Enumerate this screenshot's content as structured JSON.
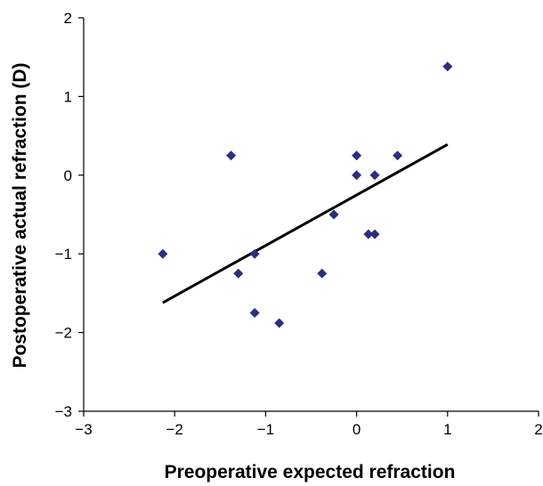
{
  "chart_data": {
    "type": "scatter",
    "title": "",
    "xlabel": "Preoperative expected refraction",
    "ylabel": "Postoperative actual refraction (D)",
    "xlim": [
      -3,
      2
    ],
    "ylim": [
      -3,
      2
    ],
    "x_ticks": [
      -3,
      -2,
      -1,
      0,
      1,
      2
    ],
    "y_ticks": [
      -3,
      -2,
      -1,
      0,
      1,
      2
    ],
    "x_tick_labels": [
      "−3",
      "−2",
      "−1",
      "0",
      "1",
      "2"
    ],
    "y_tick_labels": [
      "−3",
      "−2",
      "−1",
      "0",
      "1",
      "2"
    ],
    "grid": false,
    "legend": "none",
    "marker": "diamond",
    "marker_color": "#2e2e7e",
    "line_color": "#000000",
    "series": [
      {
        "points": [
          {
            "x": -2.13,
            "y": -1.0
          },
          {
            "x": -1.38,
            "y": 0.25
          },
          {
            "x": -1.3,
            "y": -1.25
          },
          {
            "x": -1.12,
            "y": -1.0
          },
          {
            "x": -1.12,
            "y": -1.75
          },
          {
            "x": -0.85,
            "y": -1.88
          },
          {
            "x": -0.38,
            "y": -1.25
          },
          {
            "x": -0.25,
            "y": -0.5
          },
          {
            "x": 0.0,
            "y": 0.0
          },
          {
            "x": 0.0,
            "y": 0.25
          },
          {
            "x": 0.13,
            "y": -0.75
          },
          {
            "x": 0.2,
            "y": -0.75
          },
          {
            "x": 0.2,
            "y": 0.0
          },
          {
            "x": 0.45,
            "y": 0.25
          },
          {
            "x": 1.0,
            "y": 1.38
          }
        ]
      }
    ],
    "trendline": {
      "x": [
        -2.13,
        1.0
      ],
      "y": [
        -1.62,
        0.39
      ]
    }
  }
}
